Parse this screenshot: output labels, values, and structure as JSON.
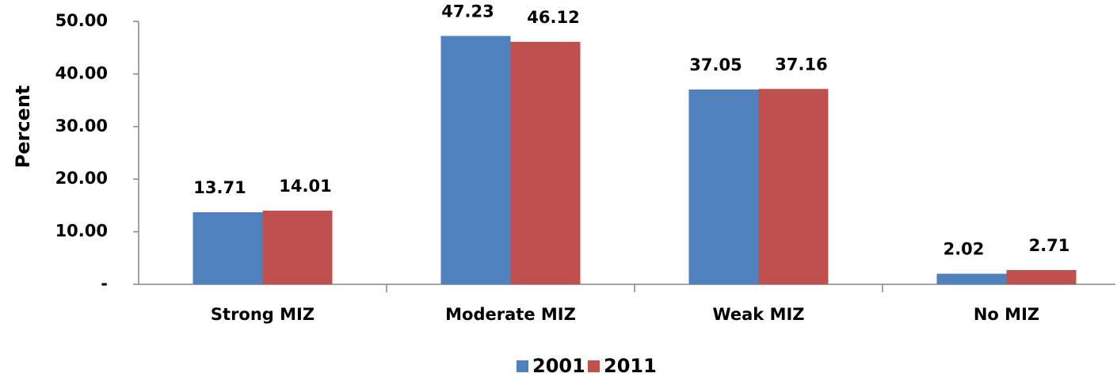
{
  "chart_data": {
    "type": "bar",
    "y_label": "Percent",
    "categories": [
      "Strong MIZ",
      "Moderate MIZ",
      "Weak MIZ",
      "No MIZ"
    ],
    "series": [
      {
        "name": "2001",
        "color": "#4f81bd",
        "values": [
          13.71,
          47.23,
          37.05,
          2.02
        ]
      },
      {
        "name": "2011",
        "color": "#c0504d",
        "values": [
          14.01,
          46.12,
          37.16,
          2.71
        ]
      }
    ],
    "ylim": [
      0,
      50
    ],
    "yticks": [
      {
        "value": 0,
        "label": "-"
      },
      {
        "value": 10,
        "label": "10.00"
      },
      {
        "value": 20,
        "label": "20.00"
      },
      {
        "value": 30,
        "label": "30.00"
      },
      {
        "value": 40,
        "label": "40.00"
      },
      {
        "value": 50,
        "label": "50.00"
      }
    ],
    "grid": false,
    "legend": "bottom"
  }
}
